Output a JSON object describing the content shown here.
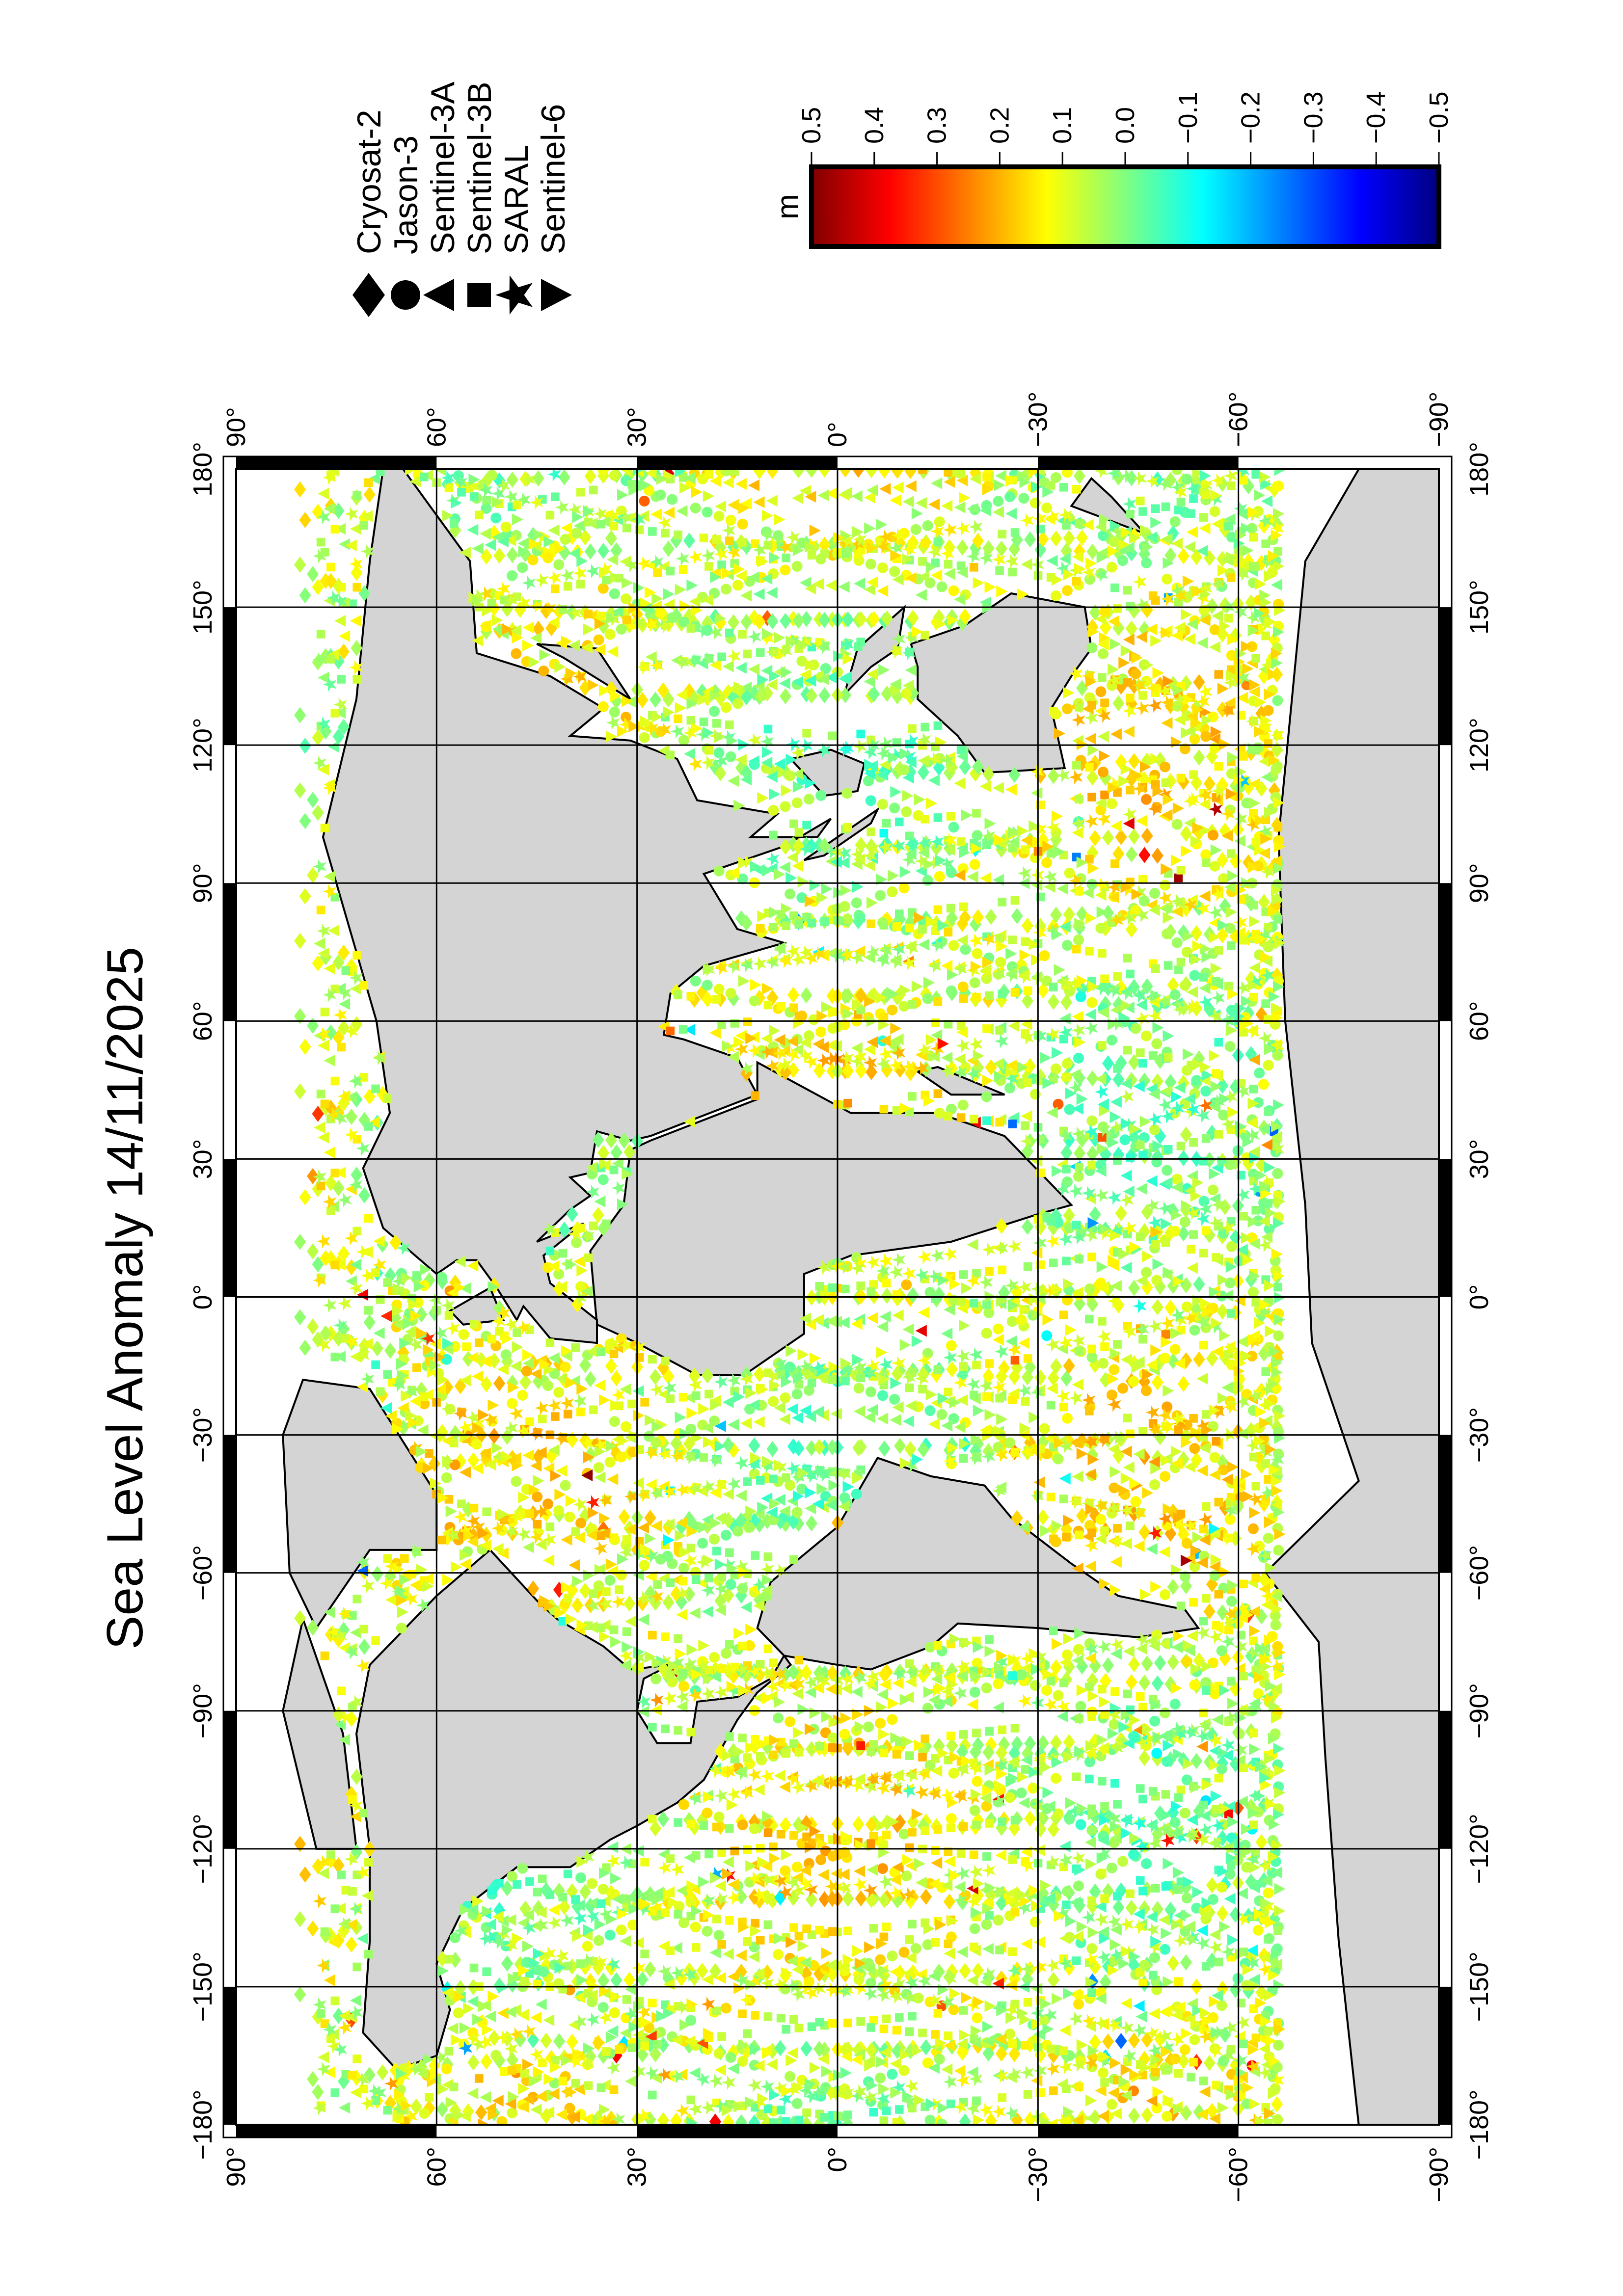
{
  "title": "Sea Level Anomaly 14/11/2025",
  "map": {
    "lon_ticks": [
      "−180°",
      "−150°",
      "−120°",
      "−90°",
      "−60°",
      "−30°",
      "0°",
      "30°",
      "60°",
      "90°",
      "120°",
      "150°",
      "180°"
    ],
    "lat_ticks": [
      "90°",
      "60°",
      "30°",
      "0°",
      "−30°",
      "−60°",
      "−90°"
    ],
    "land_color": "#d4d4d4",
    "ocean_color": "#ffffff",
    "gridlines": true
  },
  "colorbar": {
    "label": "m",
    "colormap": "jet",
    "range": [
      -0.5,
      0.5
    ],
    "ticks": [
      "0.5",
      "0.4",
      "0.3",
      "0.2",
      "0.1",
      "0.0",
      "−0.1",
      "−0.2",
      "−0.3",
      "−0.4",
      "−0.5"
    ],
    "max_color": "#800000",
    "mid_color": "#ffff00",
    "min_color": "#000080"
  },
  "legend": {
    "items": [
      {
        "label": "Cryosat-2",
        "symbol": "diamond"
      },
      {
        "label": "Jason-3",
        "symbol": "circle"
      },
      {
        "label": "Sentinel-3A",
        "symbol": "triangle-left"
      },
      {
        "label": "Sentinel-3B",
        "symbol": "square"
      },
      {
        "label": "SARAL",
        "symbol": "star"
      },
      {
        "label": "Sentinel-6",
        "symbol": "triangle-right"
      }
    ]
  }
}
